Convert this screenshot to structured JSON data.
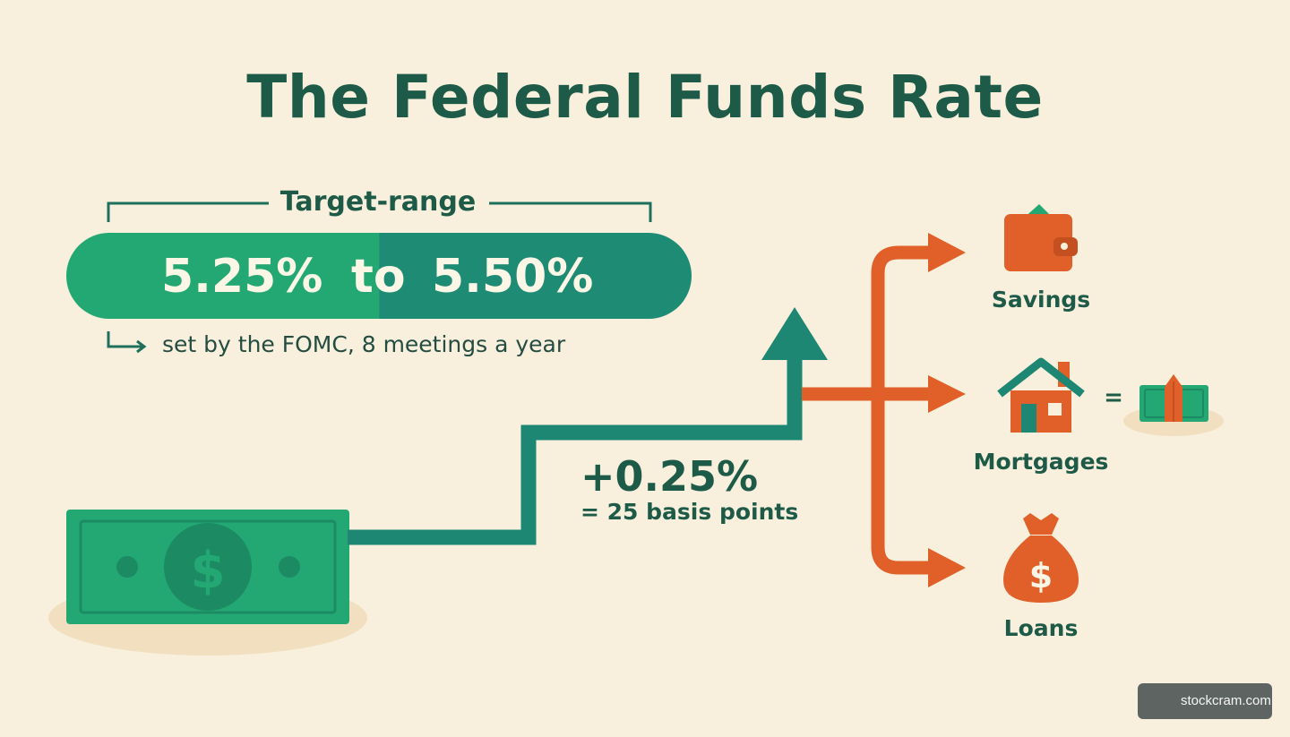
{
  "title": "The Federal Funds Rate",
  "target_range": {
    "label": "Target-range",
    "low": "5.25%",
    "connector": "to",
    "high": "5.50%",
    "note": "set by the FOMC, 8 meetings a year"
  },
  "change": {
    "amount": "+0.25%",
    "equivalence": "= 25 basis points"
  },
  "effects": [
    {
      "label": "Savings",
      "icon": "wallet-icon"
    },
    {
      "label": "Mortgages",
      "icon": "house-icon",
      "extra": "=",
      "extra_icon": "cash-icon"
    },
    {
      "label": "Loans",
      "icon": "money-bag-icon"
    }
  ],
  "money_icon": "dollar-bill-icon",
  "watermark": {
    "text": "stockcram.com",
    "icon": "stockcram-logo-icon"
  },
  "colors": {
    "background": "#f8f0dc",
    "primary_green": "#23a873",
    "dark_teal": "#1e8b74",
    "title_green": "#1d5a47",
    "orange": "#e15f28"
  }
}
